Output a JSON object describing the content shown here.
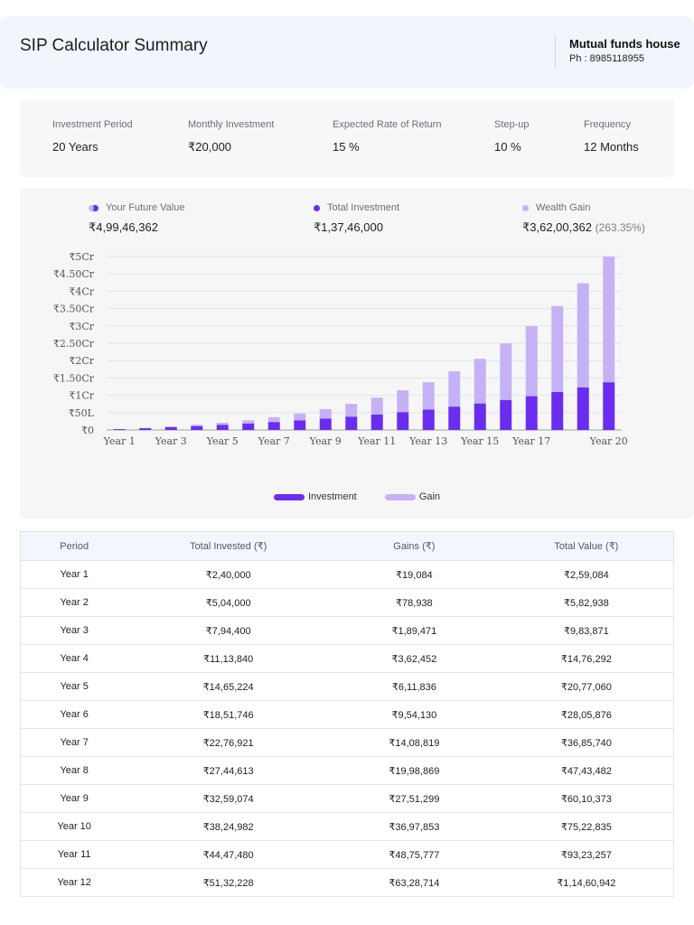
{
  "header": {
    "title": "SIP Calculator Summary",
    "org": "Mutual funds house",
    "phone": "Ph : 8985118955"
  },
  "params": [
    {
      "label": "Investment Period",
      "value": "20 Years"
    },
    {
      "label": "Monthly Investment",
      "value": "₹20,000"
    },
    {
      "label": "Expected Rate of Return",
      "value": "15 %"
    },
    {
      "label": "Step-up",
      "value": "10 %"
    },
    {
      "label": "Frequency",
      "value": "12 Months"
    }
  ],
  "summary": {
    "future_value": {
      "label": "Your Future Value",
      "value": "₹4,99,46,362"
    },
    "total_investment": {
      "label": "Total Investment",
      "value": "₹1,37,46,000"
    },
    "wealth_gain": {
      "label": "Wealth Gain",
      "value": "₹3,62,00,362",
      "pct": "(263.35%)"
    }
  },
  "colors": {
    "investment": "#6a2df0",
    "gain": "#c5b2f6"
  },
  "legend": {
    "investment": "Investment",
    "gain": "Gain"
  },
  "chart_data": {
    "type": "bar",
    "stacked": true,
    "categories": [
      "Year 1",
      "Year 2",
      "Year 3",
      "Year 4",
      "Year 5",
      "Year 6",
      "Year 7",
      "Year 8",
      "Year 9",
      "Year 10",
      "Year 11",
      "Year 12",
      "Year 13",
      "Year 14",
      "Year 15",
      "Year 16",
      "Year 17",
      "Year 18",
      "Year 19",
      "Year 20"
    ],
    "x_tick_labels": [
      "Year 1",
      "Year 3",
      "Year 5",
      "Year 7",
      "Year 9",
      "Year 11",
      "Year 13",
      "Year 15",
      "Year 17",
      "Year 20"
    ],
    "series": [
      {
        "name": "Investment",
        "values": [
          240000,
          504000,
          794400,
          1113840,
          1465224,
          1851746,
          2276921,
          2744613,
          3259074,
          3824982,
          4447480,
          5132228,
          5885450,
          6714000,
          7625400,
          8627940,
          9730734,
          10943807,
          12278188,
          13746000
        ]
      },
      {
        "name": "Gain",
        "values": [
          19084,
          78938,
          189471,
          362452,
          611836,
          954130,
          1408819,
          1998869,
          2751299,
          3697853,
          4875777,
          6328714,
          7900000,
          10200000,
          12900000,
          16300000,
          20200000,
          24800000,
          30000000,
          36200362
        ]
      }
    ],
    "y_ticks": [
      0,
      5000000,
      10000000,
      15000000,
      20000000,
      25000000,
      30000000,
      35000000,
      40000000,
      45000000,
      50000000
    ],
    "y_tick_labels": [
      "₹0",
      "₹50L",
      "₹1Cr",
      "₹1.50Cr",
      "₹2Cr",
      "₹2.50Cr",
      "₹3Cr",
      "₹3.50Cr",
      "₹4Cr",
      "₹4.50Cr",
      "₹5Cr"
    ],
    "ylim": [
      0,
      50000000
    ],
    "grid": true,
    "legend_position": "bottom"
  },
  "table": {
    "headers": [
      "Period",
      "Total Invested (₹)",
      "Gains (₹)",
      "Total Value (₹)"
    ],
    "rows": [
      [
        "Year 1",
        "₹2,40,000",
        "₹19,084",
        "₹2,59,084"
      ],
      [
        "Year 2",
        "₹5,04,000",
        "₹78,938",
        "₹5,82,938"
      ],
      [
        "Year 3",
        "₹7,94,400",
        "₹1,89,471",
        "₹9,83,871"
      ],
      [
        "Year 4",
        "₹11,13,840",
        "₹3,62,452",
        "₹14,76,292"
      ],
      [
        "Year 5",
        "₹14,65,224",
        "₹6,11,836",
        "₹20,77,060"
      ],
      [
        "Year 6",
        "₹18,51,746",
        "₹9,54,130",
        "₹28,05,876"
      ],
      [
        "Year 7",
        "₹22,76,921",
        "₹14,08,819",
        "₹36,85,740"
      ],
      [
        "Year 8",
        "₹27,44,613",
        "₹19,98,869",
        "₹47,43,482"
      ],
      [
        "Year 9",
        "₹32,59,074",
        "₹27,51,299",
        "₹60,10,373"
      ],
      [
        "Year 10",
        "₹38,24,982",
        "₹36,97,853",
        "₹75,22,835"
      ],
      [
        "Year 11",
        "₹44,47,480",
        "₹48,75,777",
        "₹93,23,257"
      ],
      [
        "Year 12",
        "₹51,32,228",
        "₹63,28,714",
        "₹1,14,60,942"
      ]
    ]
  }
}
